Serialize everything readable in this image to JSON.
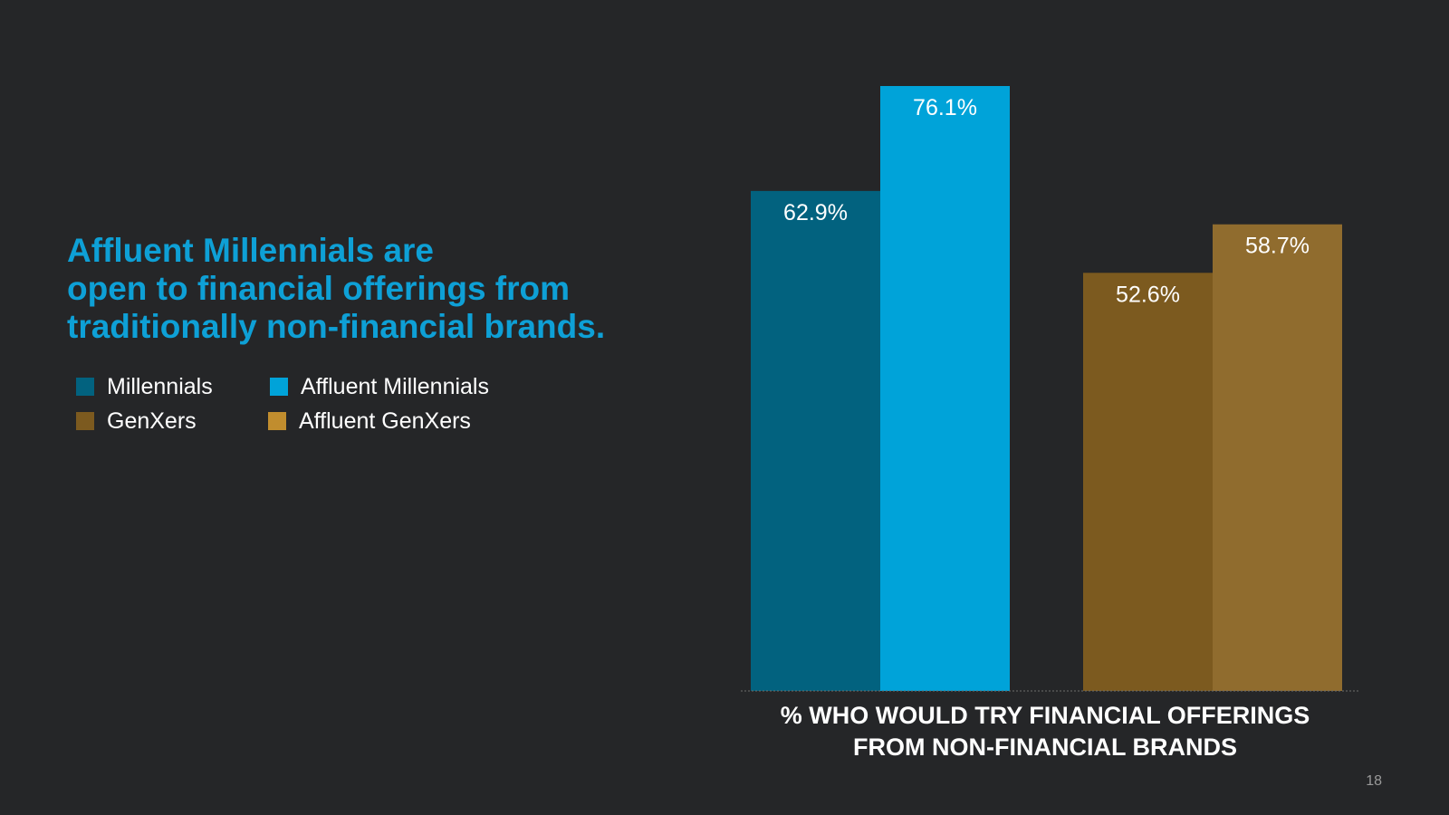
{
  "headline": {
    "line1": "Affluent Millennials are",
    "line2": "open to financial offerings from",
    "line3": "traditionally non-financial brands."
  },
  "legend": [
    {
      "label": "Millennials",
      "color": "#02627f"
    },
    {
      "label": "Affluent Millennials",
      "color": "#00a3d9"
    },
    {
      "label": "GenXers",
      "color": "#7c5a1f"
    },
    {
      "label": "Affluent GenXers",
      "color": "#c18d2e"
    }
  ],
  "chart_data": {
    "type": "bar",
    "title": "",
    "xlabel": "% WHO WOULD TRY FINANCIAL OFFERINGS FROM NON-FINANCIAL BRANDS",
    "xlabel_lines": [
      "% WHO WOULD TRY FINANCIAL OFFERINGS",
      "FROM NON-FINANCIAL BRANDS"
    ],
    "ylabel": "",
    "ylim": [
      0,
      80
    ],
    "grid": false,
    "legend_position": "left",
    "value_suffix": "%",
    "groups": [
      {
        "bars": [
          {
            "series": "Millennials",
            "value": 62.9,
            "label": "62.9%",
            "color": "#02627f"
          },
          {
            "series": "Affluent Millennials",
            "value": 76.1,
            "label": "76.1%",
            "color": "#00a3d9"
          }
        ]
      },
      {
        "bars": [
          {
            "series": "GenXers",
            "value": 52.6,
            "label": "52.6%",
            "color": "#7c5a1f"
          },
          {
            "series": "Affluent GenXers",
            "value": 58.7,
            "label": "58.7%",
            "color": "#906c2e"
          }
        ]
      }
    ]
  },
  "footer": {
    "page_number": "18"
  }
}
